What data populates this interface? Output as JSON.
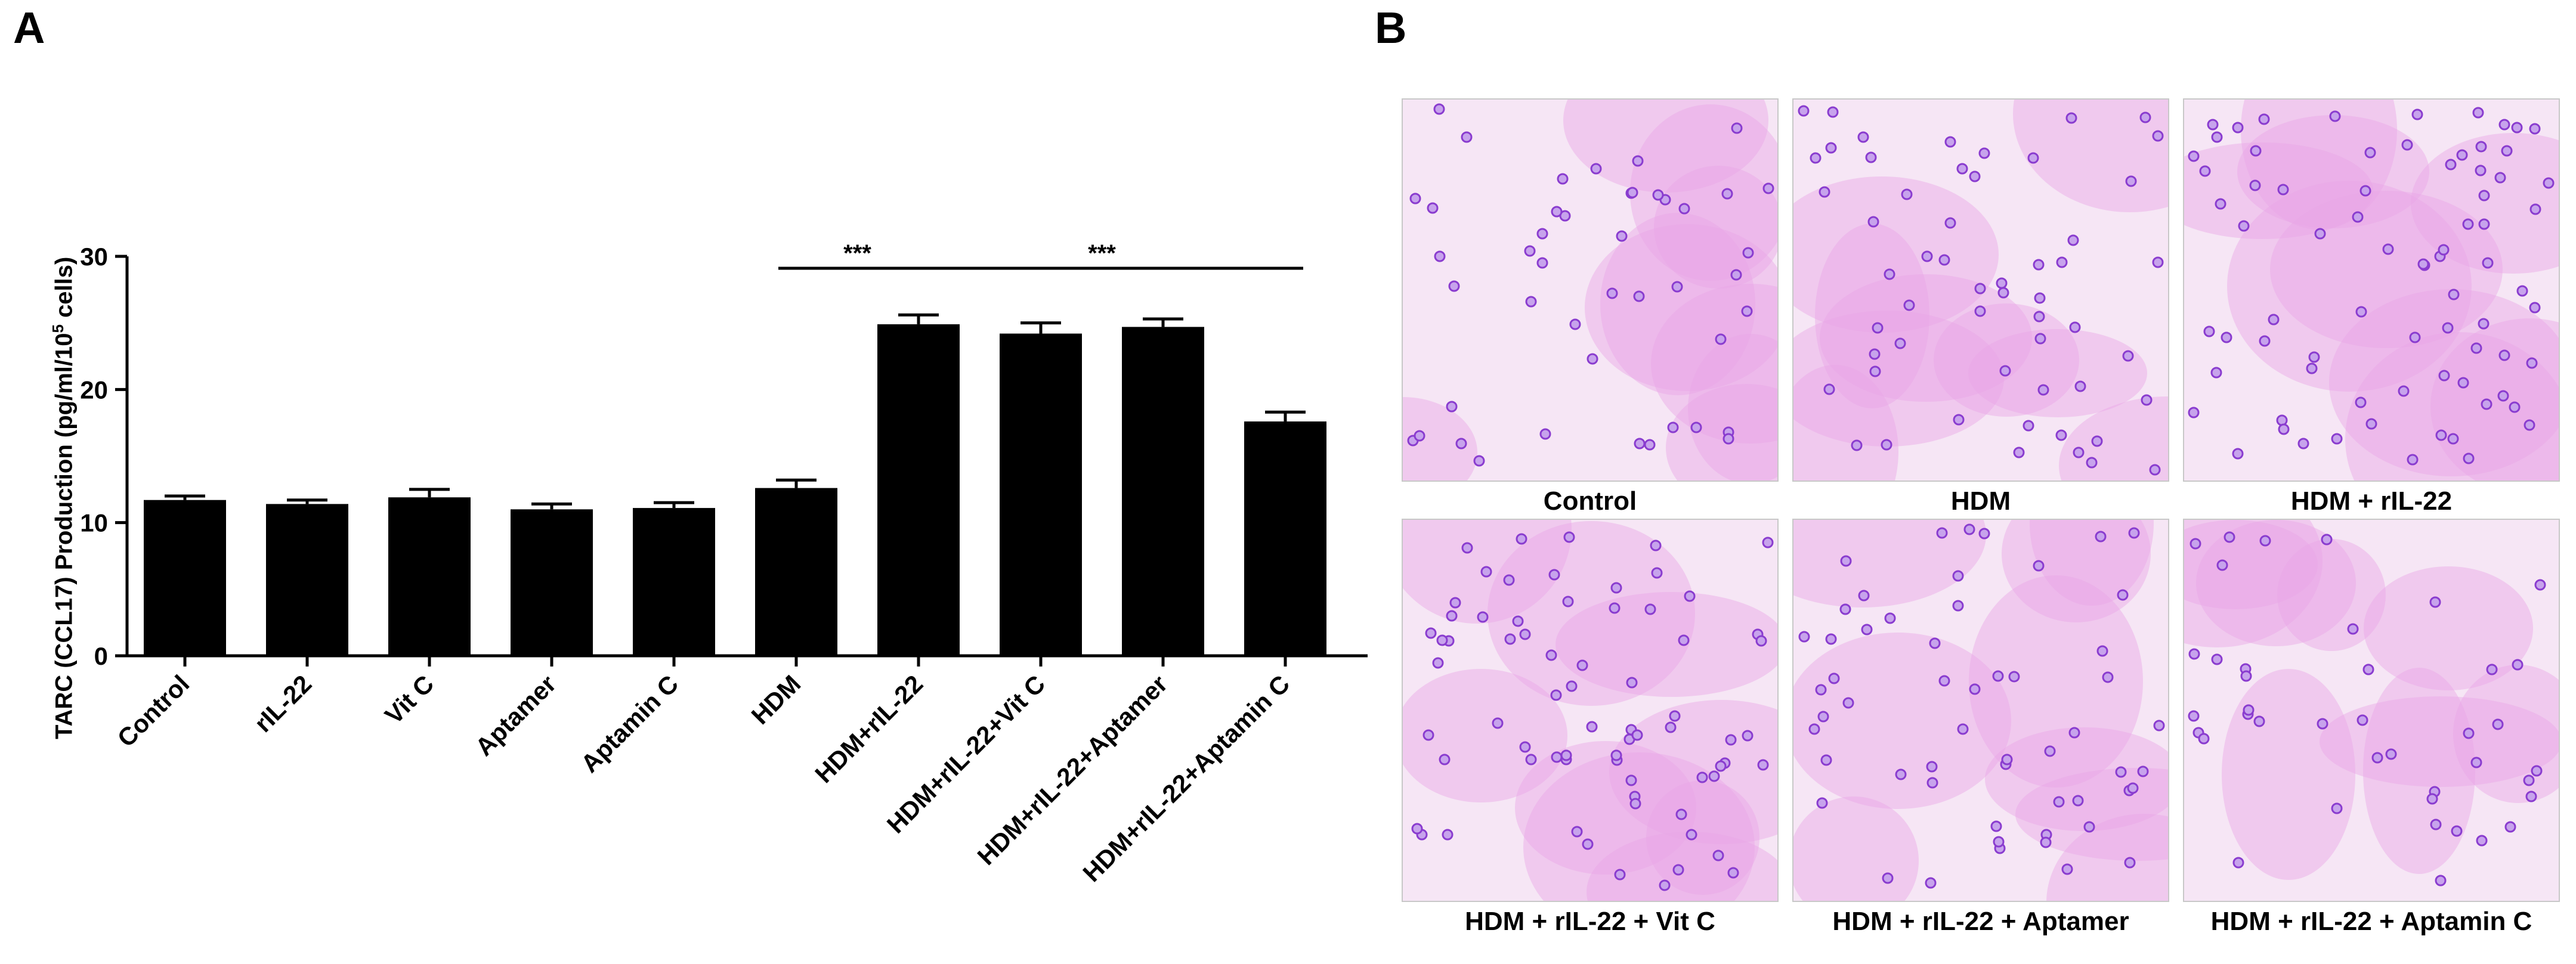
{
  "panels": {
    "a_letter": "A",
    "b_letter": "B"
  },
  "chart_data": {
    "type": "bar",
    "ylabel_main": "TARC (CCL17) Production (pg/ml/10",
    "ylabel_sup": "5",
    "ylabel_tail": " cells)",
    "xlabel": "",
    "ylim": [
      0,
      30
    ],
    "yticks": [
      "0",
      "10",
      "20",
      "30"
    ],
    "categories": [
      "Control",
      "rIL-22",
      "Vit C",
      "Aptamer",
      "Aptamin C",
      "HDM",
      "HDM+rIL-22",
      "HDM+rIL-22+Vit C",
      "HDM+rIL-22+Aptamer",
      "HDM+rIL-22+Aptamin C"
    ],
    "values": [
      11.7,
      11.4,
      11.9,
      11.0,
      11.1,
      12.6,
      24.9,
      24.2,
      24.7,
      17.6
    ],
    "errors": [
      0.3,
      0.3,
      0.6,
      0.4,
      0.4,
      0.6,
      0.7,
      0.8,
      0.6,
      0.7
    ],
    "bar_color": "#000000",
    "grid": false,
    "significance": [
      {
        "label": "***",
        "from": 5,
        "to": 6
      },
      {
        "label": "***",
        "from": 6,
        "to": 9
      }
    ]
  },
  "micrographs": {
    "labels": [
      "Control",
      "HDM",
      "HDM + rIL-22",
      "HDM + rIL-22 + Vit C",
      "HDM + rIL-22 + Aptamer",
      "HDM + rIL-22 + Aptamin C"
    ],
    "stain_color": "#e9a6e6",
    "cell_color": "#8a3ccf",
    "density": [
      45,
      55,
      75,
      70,
      55,
      40
    ]
  }
}
